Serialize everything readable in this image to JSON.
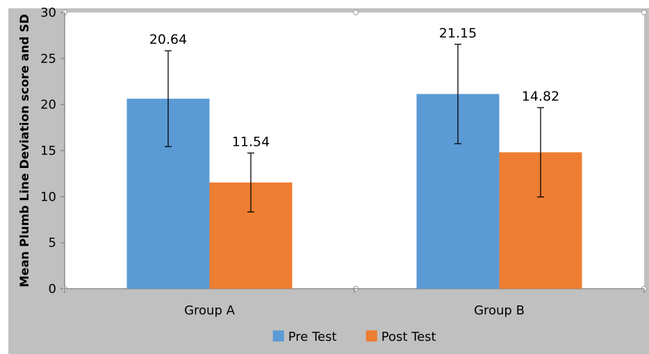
{
  "chart_data": {
    "type": "bar",
    "title": "",
    "xlabel": "",
    "ylabel": "Mean Plumb Line Deviation score and SD",
    "ylim": [
      0,
      30
    ],
    "yticks": [
      0,
      5,
      10,
      15,
      20,
      25,
      30
    ],
    "categories": [
      "Group A",
      "Group B"
    ],
    "series": [
      {
        "name": "Pre Test",
        "color": "#5b9bd5",
        "values": [
          20.64,
          21.15
        ],
        "sd": [
          5.2,
          5.4
        ],
        "labels": [
          "20.64",
          "21.15"
        ]
      },
      {
        "name": "Post Test",
        "color": "#ed7d31",
        "values": [
          11.54,
          14.82
        ],
        "sd": [
          3.2,
          4.85
        ],
        "labels": [
          "11.54",
          "14.82"
        ]
      }
    ],
    "grid": false,
    "legend_position": "bottom",
    "background_color": "#c0c0c0",
    "plot_background_color": "#ffffff"
  }
}
